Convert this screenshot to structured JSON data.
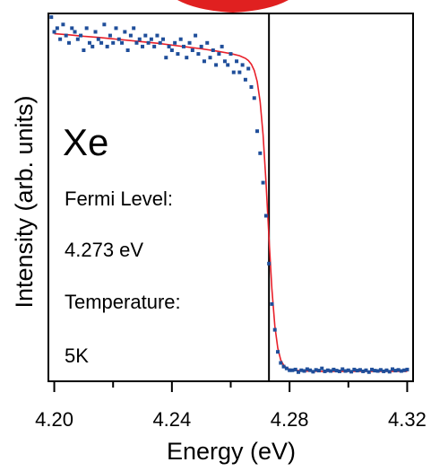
{
  "chart_data": {
    "type": "scatter",
    "xlabel": "Energy (eV)",
    "ylabel": "Intensity (arb. units)",
    "xlim": [
      4.198,
      4.322
    ],
    "ylim": [
      0.0,
      1.0
    ],
    "x_ticks": [
      "4.20",
      "4.24",
      "4.28",
      "4.32"
    ],
    "x_tick_values": [
      4.2,
      4.24,
      4.28,
      4.32
    ],
    "x_minor_ticks": [
      4.22,
      4.26,
      4.3
    ],
    "y_ticks_shown": false,
    "annotations": {
      "element": "Xe",
      "fermi_label": "Fermi Level:",
      "fermi_value": "4.273 eV",
      "temp_label": "Temperature:",
      "temp_value": "5K"
    },
    "vertical_line_x": 4.273,
    "colors": {
      "data": "#1f4e9a",
      "fit": "#e8202a",
      "top_band": "#e02020"
    },
    "series": [
      {
        "type": "scatter",
        "x": [
          4.199,
          4.2,
          4.201,
          4.202,
          4.203,
          4.204,
          4.205,
          4.206,
          4.207,
          4.208,
          4.209,
          4.21,
          4.211,
          4.212,
          4.213,
          4.214,
          4.215,
          4.216,
          4.217,
          4.218,
          4.219,
          4.22,
          4.221,
          4.222,
          4.223,
          4.224,
          4.225,
          4.226,
          4.227,
          4.228,
          4.229,
          4.23,
          4.231,
          4.232,
          4.233,
          4.234,
          4.235,
          4.236,
          4.237,
          4.238,
          4.239,
          4.24,
          4.241,
          4.242,
          4.243,
          4.244,
          4.245,
          4.246,
          4.247,
          4.248,
          4.249,
          4.25,
          4.251,
          4.252,
          4.253,
          4.254,
          4.255,
          4.256,
          4.257,
          4.258,
          4.259,
          4.26,
          4.261,
          4.262,
          4.263,
          4.264,
          4.265,
          4.266,
          4.267,
          4.268,
          4.269,
          4.27,
          4.271,
          4.272,
          4.273,
          4.274,
          4.275,
          4.276,
          4.277,
          4.278,
          4.279,
          4.28,
          4.281,
          4.282,
          4.283,
          4.284,
          4.285,
          4.286,
          4.287,
          4.288,
          4.289,
          4.29,
          4.291,
          4.292,
          4.293,
          4.294,
          4.295,
          4.296,
          4.297,
          4.298,
          4.299,
          4.3,
          4.301,
          4.302,
          4.303,
          4.304,
          4.305,
          4.306,
          4.307,
          4.308,
          4.309,
          4.31,
          4.311,
          4.312,
          4.313,
          4.314,
          4.315,
          4.316,
          4.317,
          4.318,
          4.319,
          4.32
        ],
        "y": [
          0.99,
          0.95,
          0.96,
          0.93,
          0.97,
          0.94,
          0.92,
          0.96,
          0.95,
          0.93,
          0.94,
          0.9,
          0.96,
          0.92,
          0.91,
          0.95,
          0.93,
          0.92,
          0.97,
          0.91,
          0.94,
          0.92,
          0.96,
          0.93,
          0.92,
          0.95,
          0.9,
          0.94,
          0.96,
          0.92,
          0.93,
          0.91,
          0.94,
          0.92,
          0.93,
          0.91,
          0.94,
          0.92,
          0.93,
          0.88,
          0.91,
          0.9,
          0.92,
          0.89,
          0.93,
          0.91,
          0.88,
          0.92,
          0.9,
          0.94,
          0.89,
          0.91,
          0.87,
          0.92,
          0.88,
          0.9,
          0.86,
          0.89,
          0.91,
          0.87,
          0.86,
          0.89,
          0.84,
          0.87,
          0.84,
          0.86,
          0.82,
          0.85,
          0.8,
          0.77,
          0.68,
          0.62,
          0.54,
          0.45,
          0.32,
          0.21,
          0.14,
          0.08,
          0.05,
          0.04,
          0.035,
          0.03,
          0.03,
          0.032,
          0.025,
          0.03,
          0.028,
          0.033,
          0.03,
          0.026,
          0.031,
          0.029,
          0.035,
          0.027,
          0.03,
          0.028,
          0.032,
          0.029,
          0.027,
          0.033,
          0.028,
          0.03,
          0.026,
          0.032,
          0.029,
          0.031,
          0.027,
          0.03,
          0.025,
          0.032,
          0.029,
          0.028,
          0.031,
          0.027,
          0.03,
          0.026,
          0.033,
          0.029,
          0.031,
          0.028,
          0.03,
          0.032
        ]
      },
      {
        "type": "line",
        "name": "fit",
        "x": [
          4.2,
          4.205,
          4.21,
          4.215,
          4.22,
          4.225,
          4.23,
          4.235,
          4.24,
          4.245,
          4.25,
          4.255,
          4.26,
          4.263,
          4.265,
          4.266,
          4.267,
          4.268,
          4.269,
          4.27,
          4.271,
          4.272,
          4.273,
          4.274,
          4.275,
          4.276,
          4.277,
          4.278,
          4.279,
          4.28,
          4.282,
          4.285,
          4.29,
          4.295,
          4.3,
          4.305,
          4.31,
          4.315,
          4.32
        ],
        "y": [
          0.945,
          0.942,
          0.938,
          0.935,
          0.931,
          0.927,
          0.923,
          0.919,
          0.914,
          0.909,
          0.904,
          0.898,
          0.891,
          0.885,
          0.878,
          0.872,
          0.862,
          0.845,
          0.815,
          0.76,
          0.67,
          0.54,
          0.39,
          0.25,
          0.15,
          0.09,
          0.058,
          0.044,
          0.036,
          0.033,
          0.03,
          0.028,
          0.027,
          0.027,
          0.027,
          0.027,
          0.027,
          0.027,
          0.027
        ]
      }
    ]
  }
}
